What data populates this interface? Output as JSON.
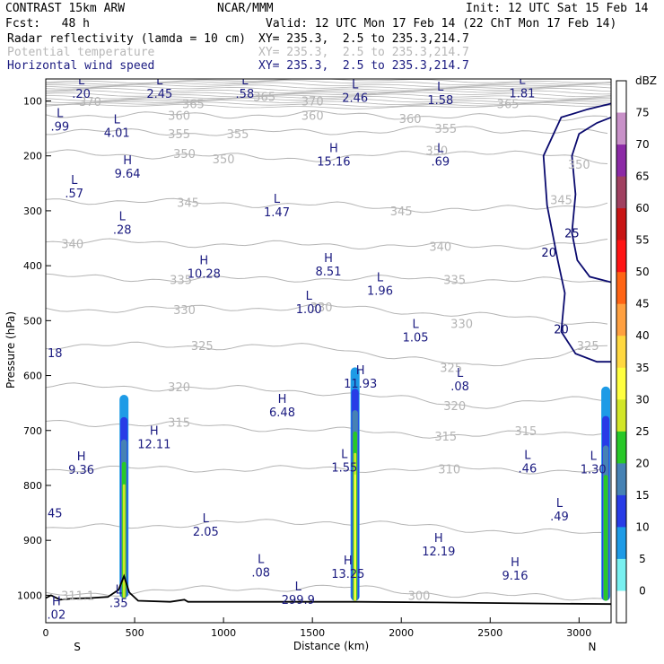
{
  "header": {
    "model": "CONTRAST 15km ARW",
    "org": "NCAR/MMM",
    "init": "Init: 12 UTC Sat 15 Feb 14",
    "fcst": "Fcst:   48 h",
    "valid": "Valid: 12 UTC Mon 17 Feb 14 (22 ChT Mon 17 Feb 14)",
    "fields": [
      {
        "name": "Radar reflectivity (lamda = 10 cm)",
        "xy": "XY= 235.3,  2.5 to 235.3,214.7"
      },
      {
        "name": "Potential temperature",
        "xy": "XY= 235.3,  2.5 to 235.3,214.7"
      },
      {
        "name": "Horizontal wind speed",
        "xy": "XY= 235.3,  2.5 to 235.3,214.7"
      }
    ]
  },
  "colors": {
    "theta_line": "#b4b4b4",
    "wind_line": "#0a0a6e",
    "terrain": "#000000",
    "hl_text": "#1a1a80"
  },
  "chart_data": {
    "type": "cross-section",
    "xlabel": "Distance (km)",
    "ylabel": "Pressure (hPa)",
    "xlim": [
      0,
      3180
    ],
    "ylim": [
      1050,
      60
    ],
    "x_ticks": [
      0,
      500,
      1000,
      1500,
      2000,
      2500,
      3000
    ],
    "y_ticks": [
      100,
      200,
      300,
      400,
      500,
      600,
      700,
      800,
      900,
      1000
    ],
    "end_labels": {
      "left": "S",
      "right": "N"
    },
    "colorbar": {
      "unit": "dBZ",
      "ticks": [
        75,
        70,
        65,
        60,
        55,
        50,
        45,
        40,
        35,
        30,
        25,
        20,
        15,
        10,
        5,
        0
      ],
      "colors": [
        "#ffffff",
        "#c891c8",
        "#8c2aa6",
        "#a04060",
        "#c81414",
        "#ff1414",
        "#ff6414",
        "#ffa040",
        "#ffd840",
        "#ffff40",
        "#d2e628",
        "#28c828",
        "#4682b4",
        "#283ce6",
        "#1e9be6",
        "#78f0f0",
        "#ffffff"
      ]
    },
    "theta_labels": [
      {
        "x": 250,
        "p": 101,
        "text": "370"
      },
      {
        "x": 1500,
        "p": 100,
        "text": "370"
      },
      {
        "x": 830,
        "p": 105,
        "text": "365"
      },
      {
        "x": 1230,
        "p": 92,
        "text": "365"
      },
      {
        "x": 2600,
        "p": 105,
        "text": "365"
      },
      {
        "x": 750,
        "p": 126,
        "text": "360"
      },
      {
        "x": 1500,
        "p": 126,
        "text": "360"
      },
      {
        "x": 2050,
        "p": 132,
        "text": "360"
      },
      {
        "x": 750,
        "p": 160,
        "text": "355"
      },
      {
        "x": 1080,
        "p": 160,
        "text": "355"
      },
      {
        "x": 2250,
        "p": 150,
        "text": "355"
      },
      {
        "x": 780,
        "p": 196,
        "text": "350"
      },
      {
        "x": 1000,
        "p": 205,
        "text": "350"
      },
      {
        "x": 2200,
        "p": 190,
        "text": "350"
      },
      {
        "x": 3000,
        "p": 215,
        "text": "350"
      },
      {
        "x": 800,
        "p": 285,
        "text": "345"
      },
      {
        "x": 2000,
        "p": 300,
        "text": "345"
      },
      {
        "x": 2900,
        "p": 280,
        "text": "345"
      },
      {
        "x": 150,
        "p": 360,
        "text": "340"
      },
      {
        "x": 2220,
        "p": 365,
        "text": "340"
      },
      {
        "x": 760,
        "p": 425,
        "text": "335"
      },
      {
        "x": 2300,
        "p": 425,
        "text": "335"
      },
      {
        "x": 780,
        "p": 480,
        "text": "330"
      },
      {
        "x": 1550,
        "p": 475,
        "text": "330"
      },
      {
        "x": 2340,
        "p": 505,
        "text": "330"
      },
      {
        "x": 880,
        "p": 545,
        "text": "325"
      },
      {
        "x": 2280,
        "p": 585,
        "text": "325"
      },
      {
        "x": 3050,
        "p": 545,
        "text": "325"
      },
      {
        "x": 750,
        "p": 620,
        "text": "320"
      },
      {
        "x": 2300,
        "p": 655,
        "text": "320"
      },
      {
        "x": 750,
        "p": 685,
        "text": "315"
      },
      {
        "x": 2250,
        "p": 710,
        "text": "315"
      },
      {
        "x": 2700,
        "p": 700,
        "text": "315"
      },
      {
        "x": 2270,
        "p": 770,
        "text": "310"
      },
      {
        "x": 2100,
        "p": 1000,
        "text": "300"
      },
      {
        "x": 180,
        "p": 1000,
        "text": "311.1"
      }
    ],
    "wind_labels": [
      {
        "x": 2830,
        "p": 375,
        "text": "20"
      },
      {
        "x": 2960,
        "p": 340,
        "text": "25"
      },
      {
        "x": 2900,
        "p": 515,
        "text": "20"
      }
    ],
    "hl_points": [
      {
        "type": "L",
        "x": 200,
        "p": 75,
        "value": ".20"
      },
      {
        "type": "L",
        "x": 640,
        "p": 75,
        "value": "2.45"
      },
      {
        "type": "L",
        "x": 1120,
        "p": 75,
        "value": ".58"
      },
      {
        "type": "L",
        "x": 1740,
        "p": 82,
        "value": "2.46"
      },
      {
        "type": "L",
        "x": 2220,
        "p": 86,
        "value": "1.58"
      },
      {
        "type": "L",
        "x": 2680,
        "p": 74,
        "value": "1.81"
      },
      {
        "type": "L",
        "x": 80,
        "p": 134,
        "value": ".99"
      },
      {
        "type": "L",
        "x": 400,
        "p": 146,
        "value": "4.01"
      },
      {
        "type": "H",
        "x": 460,
        "p": 220,
        "value": "9.64"
      },
      {
        "type": "H",
        "x": 1620,
        "p": 198,
        "value": "15.16"
      },
      {
        "type": "L",
        "x": 2220,
        "p": 198,
        "value": ".69"
      },
      {
        "type": "L",
        "x": 160,
        "p": 256,
        "value": ".57"
      },
      {
        "type": "L",
        "x": 1300,
        "p": 290,
        "value": "1.47"
      },
      {
        "type": "L",
        "x": 430,
        "p": 322,
        "value": ".28"
      },
      {
        "type": "H",
        "x": 890,
        "p": 402,
        "value": "10.28"
      },
      {
        "type": "H",
        "x": 1590,
        "p": 398,
        "value": "8.51"
      },
      {
        "type": "L",
        "x": 1880,
        "p": 433,
        "value": "1.96"
      },
      {
        "type": "L",
        "x": 1480,
        "p": 467,
        "value": "1.00"
      },
      {
        "type": "L",
        "x": 2080,
        "p": 518,
        "value": "1.05"
      },
      {
        "type": "L",
        "x": 2330,
        "p": 607,
        "value": ".08"
      },
      {
        "type": "H",
        "x": 1770,
        "p": 602,
        "value": "11.93"
      },
      {
        "type": "H",
        "x": 1330,
        "p": 655,
        "value": "6.48"
      },
      {
        "type": "H",
        "x": 610,
        "p": 713,
        "value": "12.11"
      },
      {
        "type": "H",
        "x": 200,
        "p": 759,
        "value": "9.36"
      },
      {
        "type": "L",
        "x": 1680,
        "p": 755,
        "value": "1.55"
      },
      {
        "type": "L",
        "x": 2710,
        "p": 757,
        "value": ".46"
      },
      {
        "type": "L",
        "x": 3080,
        "p": 758,
        "value": "1.30"
      },
      {
        "type": "L",
        "x": 2890,
        "p": 844,
        "value": ".49"
      },
      {
        "type": "L",
        "x": 900,
        "p": 872,
        "value": "2.05"
      },
      {
        "type": "H",
        "x": 2210,
        "p": 908,
        "value": "12.19"
      },
      {
        "type": "H",
        "x": 2640,
        "p": 952,
        "value": "9.16"
      },
      {
        "type": "L",
        "x": 1210,
        "p": 946,
        "value": ".08"
      },
      {
        "type": "H",
        "x": 1700,
        "p": 949,
        "value": "13.25"
      },
      {
        "type": "L",
        "x": 410,
        "p": 1002,
        "value": ".35"
      },
      {
        "type": "L",
        "x": 1420,
        "p": 996,
        "value": "299.9"
      },
      {
        "type": "H",
        "x": 60,
        "p": 1023,
        "value": ".02"
      }
    ],
    "left_labels": [
      {
        "x": 30,
        "p": 850,
        "text": "45"
      },
      {
        "x": 30,
        "p": 558,
        "text": "18"
      }
    ],
    "reflectivity_cores": [
      {
        "x": 440,
        "p_top": 635,
        "p_bot": 1005,
        "peak_dbz": 25
      },
      {
        "x": 1740,
        "p_top": 585,
        "p_bot": 1010,
        "peak_dbz": 30
      },
      {
        "x": 3150,
        "p_top": 620,
        "p_bot": 1010,
        "peak_dbz": 20
      }
    ]
  }
}
